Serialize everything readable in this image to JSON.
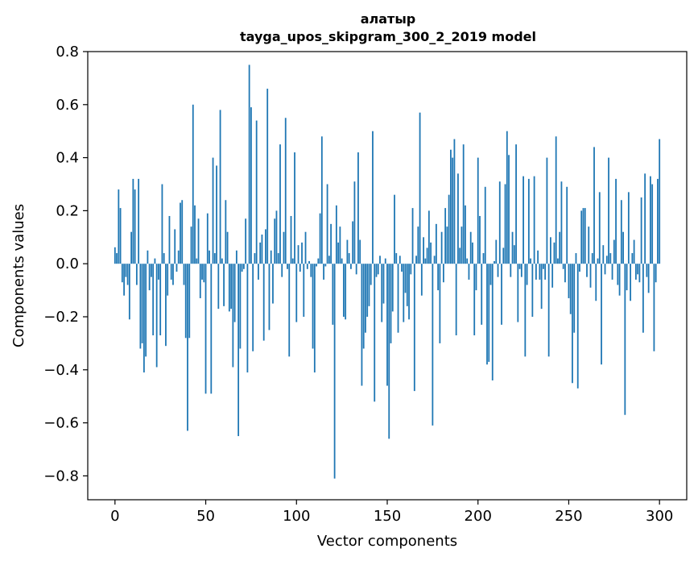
{
  "chart_data": {
    "type": "bar",
    "title": "алатыр",
    "subtitle": "tayga_upos_skipgram_300_2_2019 model",
    "xlabel": "Vector components",
    "ylabel": "Components values",
    "xlim": [
      -15,
      315
    ],
    "ylim": [
      -0.89,
      0.8
    ],
    "xticks": [
      0,
      50,
      100,
      150,
      200,
      250,
      300
    ],
    "xtick_labels": [
      "0",
      "50",
      "100",
      "150",
      "200",
      "250",
      "300"
    ],
    "yticks": [
      -0.8,
      -0.6,
      -0.4,
      -0.2,
      0.0,
      0.2,
      0.4,
      0.6,
      0.8
    ],
    "ytick_labels": [
      "−0.8",
      "−0.6",
      "−0.4",
      "−0.2",
      "0.0",
      "0.2",
      "0.4",
      "0.6",
      "0.8"
    ],
    "grid": false,
    "bar_color": "#1f77b4",
    "values": [
      0.062,
      0.04,
      0.28,
      0.21,
      -0.07,
      -0.12,
      -0.05,
      -0.08,
      -0.21,
      0.12,
      0.32,
      0.28,
      -0.08,
      0.32,
      -0.32,
      -0.3,
      -0.41,
      -0.35,
      0.05,
      -0.1,
      -0.05,
      -0.27,
      0.02,
      -0.39,
      -0.06,
      -0.27,
      0.3,
      0.04,
      -0.31,
      -0.12,
      0.18,
      -0.06,
      -0.08,
      0.13,
      -0.03,
      0.05,
      0.23,
      0.24,
      -0.08,
      -0.28,
      -0.63,
      -0.28,
      0.14,
      0.6,
      0.22,
      0.02,
      0.17,
      -0.13,
      -0.06,
      -0.07,
      -0.49,
      0.19,
      0.05,
      -0.49,
      0.4,
      0.04,
      0.37,
      -0.17,
      0.58,
      0.02,
      -0.16,
      0.24,
      0.12,
      -0.18,
      -0.17,
      -0.39,
      -0.22,
      0.05,
      -0.65,
      -0.32,
      -0.03,
      -0.02,
      0.17,
      -0.41,
      0.75,
      0.59,
      -0.33,
      0.04,
      0.54,
      -0.06,
      0.08,
      0.11,
      -0.29,
      0.13,
      0.66,
      -0.25,
      0.05,
      -0.15,
      0.17,
      0.2,
      0.04,
      0.45,
      -0.05,
      0.12,
      0.55,
      -0.02,
      -0.35,
      0.18,
      0.02,
      0.42,
      -0.22,
      0.07,
      -0.03,
      0.08,
      -0.2,
      0.12,
      -0.02,
      0.01,
      -0.05,
      -0.32,
      -0.41,
      -0.01,
      0.02,
      0.19,
      0.48,
      -0.06,
      -0.01,
      0.3,
      0.03,
      0.15,
      -0.23,
      -0.81,
      0.22,
      0.08,
      0.14,
      0.02,
      -0.2,
      -0.21,
      0.09,
      0.04,
      -0.02,
      0.16,
      0.31,
      -0.04,
      0.42,
      0.09,
      -0.46,
      -0.32,
      -0.26,
      -0.2,
      -0.16,
      -0.08,
      0.5,
      -0.52,
      -0.05,
      -0.04,
      0.03,
      -0.22,
      -0.15,
      0.02,
      -0.46,
      -0.66,
      -0.3,
      -0.18,
      0.26,
      0.04,
      -0.26,
      0.03,
      -0.03,
      -0.22,
      -0.11,
      -0.16,
      -0.21,
      -0.04,
      0.21,
      -0.48,
      0.03,
      0.14,
      0.57,
      -0.12,
      0.1,
      0.02,
      0.06,
      0.2,
      0.08,
      -0.61,
      0.03,
      0.15,
      -0.1,
      -0.3,
      0.12,
      -0.07,
      0.21,
      0.14,
      0.26,
      0.43,
      0.4,
      0.47,
      -0.27,
      0.34,
      0.06,
      0.14,
      0.45,
      0.22,
      0.02,
      -0.06,
      0.12,
      0.08,
      -0.27,
      -0.1,
      0.4,
      0.18,
      -0.23,
      0.04,
      0.29,
      -0.38,
      -0.37,
      -0.08,
      -0.44,
      0.01,
      0.09,
      -0.05,
      0.31,
      -0.23,
      0.06,
      0.3,
      0.5,
      0.41,
      -0.05,
      0.12,
      0.07,
      0.45,
      -0.22,
      -0.02,
      -0.05,
      0.33,
      -0.35,
      -0.08,
      0.32,
      0.02,
      -0.2,
      0.33,
      -0.06,
      0.05,
      -0.06,
      -0.17,
      -0.02,
      -0.06,
      0.4,
      -0.35,
      0.1,
      -0.09,
      0.08,
      0.48,
      0.02,
      0.12,
      0.31,
      -0.02,
      -0.07,
      0.29,
      -0.13,
      -0.19,
      -0.45,
      -0.26,
      0.04,
      -0.47,
      -0.03,
      0.2,
      0.21,
      0.21,
      -0.05,
      0.14,
      -0.09,
      0.04,
      0.44,
      -0.14,
      0.02,
      0.27,
      -0.38,
      0.07,
      -0.04,
      0.03,
      0.4,
      0.04,
      -0.06,
      0.09,
      0.32,
      -0.08,
      -0.12,
      0.24,
      0.12,
      -0.57,
      -0.1,
      0.27,
      -0.14,
      0.04,
      0.09,
      -0.06,
      -0.04,
      -0.07,
      0.25,
      -0.26,
      0.34,
      -0.05,
      -0.11,
      0.33,
      0.3,
      -0.33,
      -0.07,
      0.32,
      0.47
    ]
  }
}
